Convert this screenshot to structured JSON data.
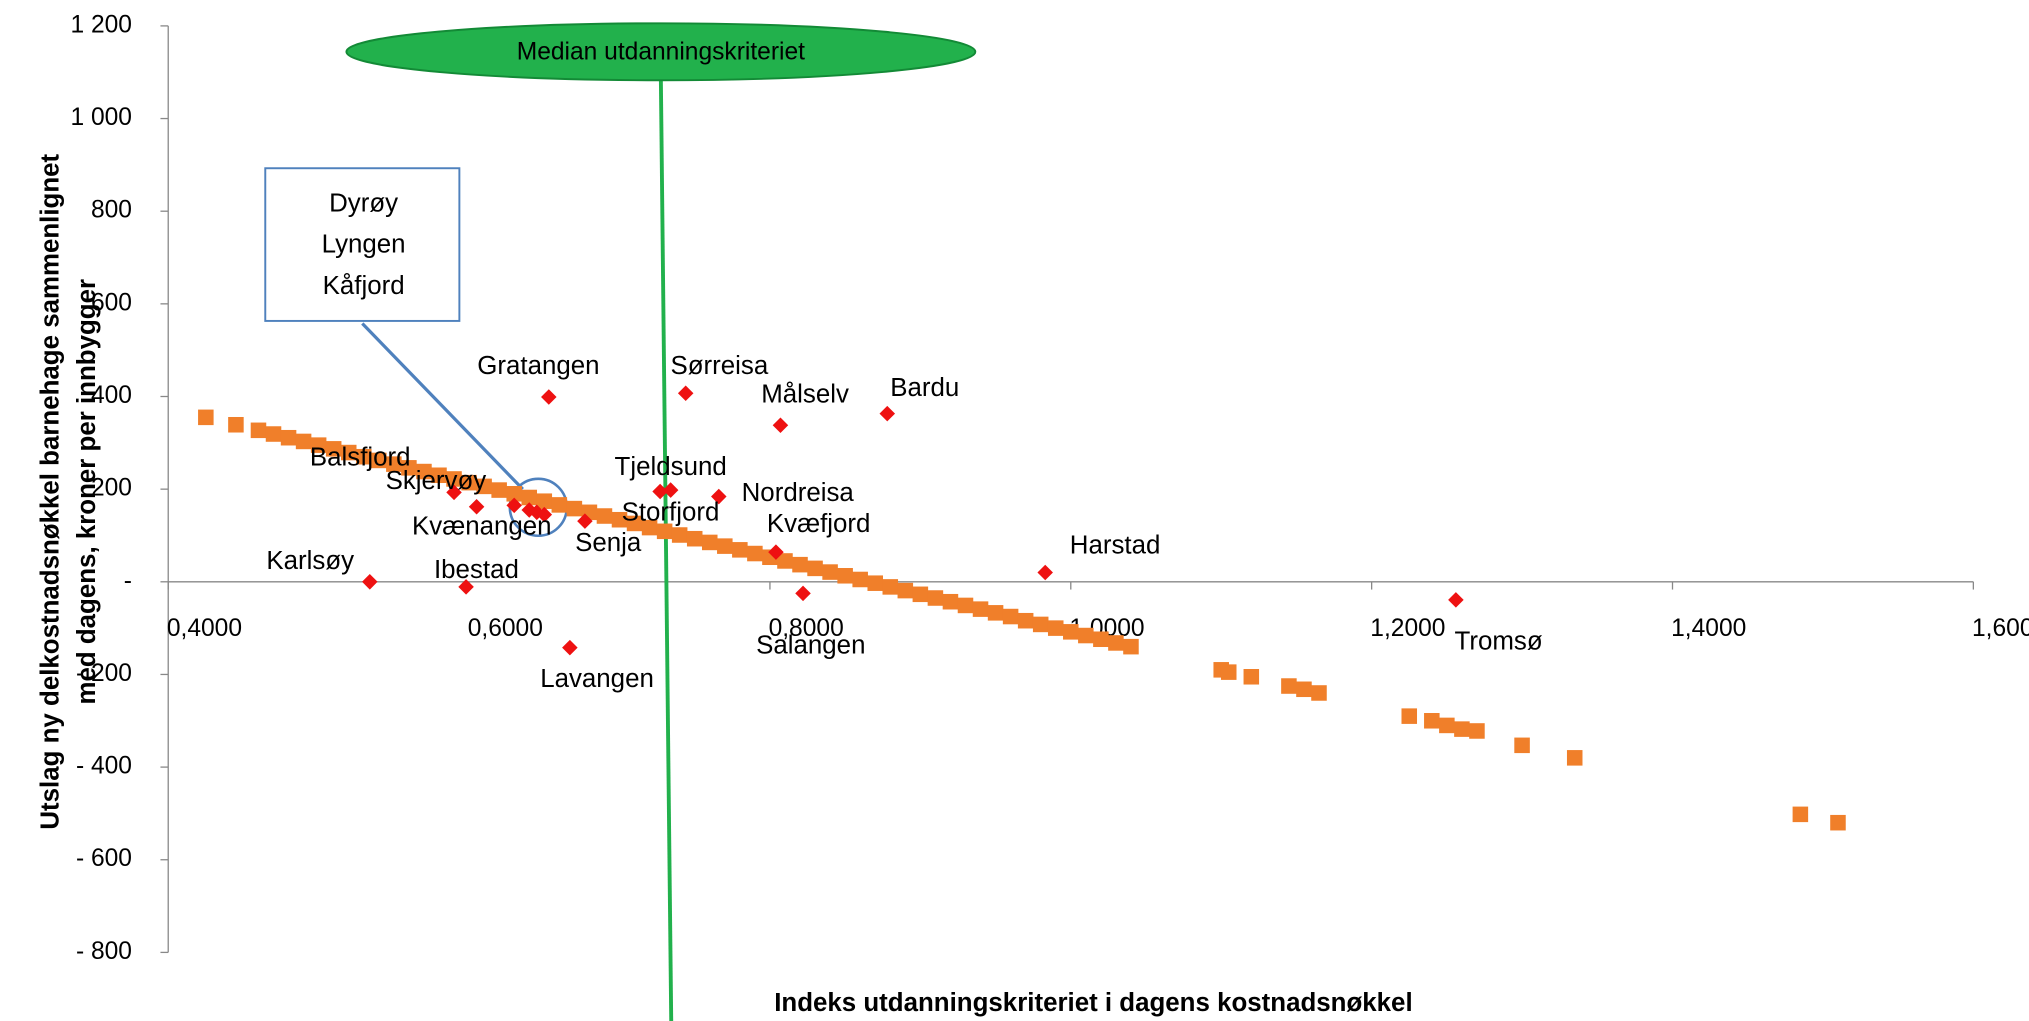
{
  "chart_data": {
    "type": "scatter",
    "xlabel": "Indeks utdanningskriteriet i dagens kostnadsnøkkel",
    "ylabel": [
      "Utslag ny delkostnadsnøkkel barnehage sammenlignet",
      "med dagens, kroner per innbygger"
    ],
    "xlim": [
      0.4,
      1.6
    ],
    "ylim": [
      -800,
      1200
    ],
    "xticks": [
      {
        "value": 0.4,
        "label": "0,4000"
      },
      {
        "value": 0.6,
        "label": "0,6000"
      },
      {
        "value": 0.8,
        "label": "0,8000"
      },
      {
        "value": 1.0,
        "label": "1,0000"
      },
      {
        "value": 1.2,
        "label": "1,2000"
      },
      {
        "value": 1.4,
        "label": "1,4000"
      },
      {
        "value": 1.6,
        "label": "1,6000"
      }
    ],
    "yticks": [
      {
        "value": -800,
        "label": "- 800"
      },
      {
        "value": -600,
        "label": "- 600"
      },
      {
        "value": -400,
        "label": "- 400"
      },
      {
        "value": -200,
        "label": "- 200"
      },
      {
        "value": 0,
        "label": "-"
      },
      200,
      400,
      600,
      800,
      {
        "value": 1000,
        "label": "1 000"
      },
      {
        "value": 1200,
        "label": "1 200"
      }
    ],
    "median": {
      "label": "Median utdanningskriteriet",
      "value": 0.7275,
      "color": "#22b14c"
    },
    "series": [
      {
        "color": "#f07f2a",
        "marker": "square",
        "x": [
          0.425,
          0.445,
          0.46,
          0.47,
          0.48,
          0.49,
          0.5,
          0.51,
          0.52,
          0.53,
          0.54,
          0.55,
          0.56,
          0.57,
          0.58,
          0.59,
          0.6,
          0.61,
          0.62,
          0.63,
          0.64,
          0.65,
          0.66,
          0.67,
          0.68,
          0.69,
          0.7,
          0.71,
          0.72,
          0.73,
          0.74,
          0.75,
          0.76,
          0.77,
          0.78,
          0.79,
          0.8,
          0.81,
          0.82,
          0.83,
          0.84,
          0.85,
          0.86,
          0.87,
          0.88,
          0.89,
          0.9,
          0.91,
          0.92,
          0.93,
          0.94,
          0.95,
          0.96,
          0.97,
          0.98,
          0.99,
          1.0,
          1.01,
          1.02,
          1.03,
          1.04,
          1.1,
          1.105,
          1.12,
          1.145,
          1.155,
          1.165,
          1.225,
          1.24,
          1.25,
          1.26,
          1.27,
          1.3,
          1.335,
          1.485,
          1.51
        ],
        "y": [
          355,
          339,
          327,
          319,
          311,
          303,
          295,
          287,
          279,
          270,
          262,
          254,
          246,
          238,
          230,
          222,
          214,
          206,
          198,
          190,
          182,
          174,
          166,
          158,
          150,
          142,
          134,
          126,
          117,
          109,
          101,
          93,
          85,
          77,
          69,
          61,
          53,
          45,
          37,
          29,
          21,
          13,
          5,
          -3,
          -11,
          -19,
          -27,
          -35,
          -43,
          -51,
          -59,
          -67,
          -75,
          -84,
          -92,
          -100,
          -108,
          -116,
          -124,
          -132,
          -140,
          -190,
          -195,
          -205,
          -225,
          -232,
          -240,
          -290,
          -300,
          -310,
          -318,
          -322,
          -353,
          -380,
          -502,
          -520
        ]
      },
      {
        "color": "#ee1111",
        "marker": "diamond",
        "labels": [
          "Karlsøy",
          "Ibestad",
          "Lavangen",
          "Skjervøy",
          "Kvænangen",
          "Balsfjord",
          "Dyrøy",
          "Lyngen",
          "Kåfjord",
          "Senja",
          "Gratangen",
          "Sørreisa",
          "Målselv",
          "Bardu",
          "Tjeldsund",
          "Storfjord",
          "Nordreisa",
          "Kvæfjord",
          "Salangen",
          "Harstad",
          "Tromsø"
        ],
        "x": [
          0.534,
          0.598,
          0.667,
          0.59,
          0.605,
          0.63,
          0.64,
          0.645,
          0.65,
          0.677,
          0.653,
          0.744,
          0.807,
          0.878,
          0.734,
          0.727,
          0.766,
          0.804,
          0.822,
          0.983,
          1.256
        ],
        "y": [
          0,
          -11,
          -142,
          193,
          162,
          165,
          155,
          150,
          145,
          131,
          399,
          407,
          338,
          363,
          198,
          195,
          184,
          64,
          -25,
          20,
          -39
        ]
      }
    ]
  }
}
